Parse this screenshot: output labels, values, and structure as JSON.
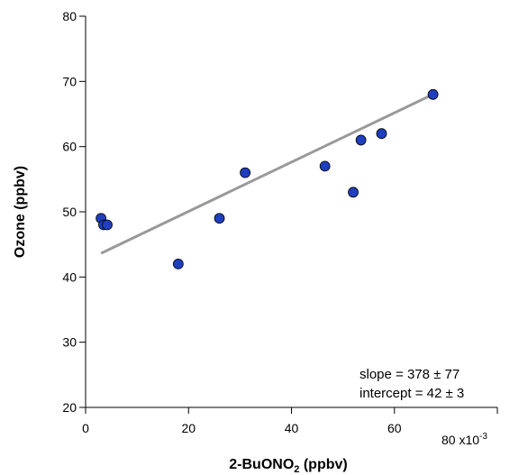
{
  "chart_data": {
    "type": "scatter",
    "title": "",
    "xlabel_main": "2-BuONO",
    "xlabel_sub": "2",
    "xlabel_tail": " (ppbv)",
    "ylabel": "Ozone (ppbv)",
    "xlim": [
      0,
      80
    ],
    "ylim": [
      20,
      80
    ],
    "x_ticks": [
      0,
      20,
      40,
      60
    ],
    "x_end_label": "80 x10",
    "x_end_exp": "-3",
    "y_ticks": [
      20,
      30,
      40,
      50,
      60,
      70,
      80
    ],
    "points": [
      {
        "x": 3,
        "y": 49
      },
      {
        "x": 3.5,
        "y": 48
      },
      {
        "x": 4.2,
        "y": 48
      },
      {
        "x": 18,
        "y": 42
      },
      {
        "x": 26,
        "y": 49
      },
      {
        "x": 31,
        "y": 56
      },
      {
        "x": 46.5,
        "y": 57
      },
      {
        "x": 52,
        "y": 53
      },
      {
        "x": 53.5,
        "y": 61
      },
      {
        "x": 57.5,
        "y": 62
      },
      {
        "x": 67.5,
        "y": 68
      }
    ],
    "fit": {
      "x": [
        3,
        67.5
      ],
      "slope": 378,
      "intercept": 42.5
    },
    "annotations": {
      "slope": "slope = 378 ± 77",
      "intercept": "intercept = 42 ± 3"
    },
    "colors": {
      "point": "#1f3fbf",
      "fit": "#999999"
    }
  }
}
